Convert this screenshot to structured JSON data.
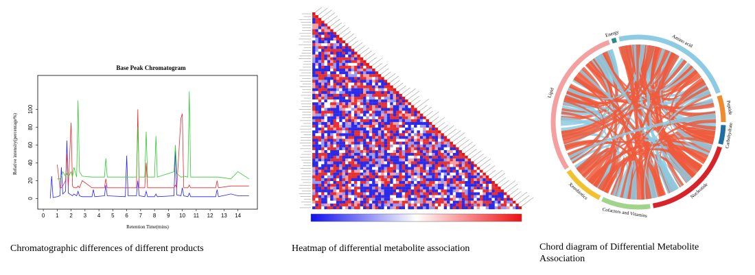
{
  "chart_data": {
    "type": "line",
    "title": "Base Peak Chromatogram",
    "xlabel": "Retention Time(mins)",
    "ylabel": "Relative intensity(percentage%)",
    "xlim": [
      -0.4,
      15.4
    ],
    "ylim": [
      -12,
      138
    ],
    "xticks": [
      0,
      1,
      2,
      3,
      4,
      5,
      6,
      7,
      8,
      9,
      10,
      11,
      12,
      13,
      14
    ],
    "yticks": [
      0,
      20,
      40,
      60,
      80,
      100
    ],
    "x": [
      0.5,
      0.6,
      0.7,
      1.0,
      1.2,
      1.3,
      1.4,
      1.6,
      1.7,
      1.8,
      2.0,
      2.1,
      2.2,
      2.4,
      2.5,
      2.6,
      2.8,
      3.5,
      3.6,
      3.7,
      4.4,
      4.5,
      4.6,
      5.9,
      6.0,
      6.1,
      6.7,
      6.8,
      6.9,
      7.3,
      7.4,
      7.5,
      8.0,
      8.1,
      8.2,
      9.4,
      9.5,
      9.6,
      9.9,
      10.0,
      10.1,
      10.4,
      10.5,
      10.6,
      12.4,
      12.5,
      12.6,
      13.5,
      14.0,
      14.8
    ],
    "series": [
      {
        "name": "blue",
        "color": "#1f1fff",
        "values": [
          0,
          25,
          1,
          2,
          3,
          35,
          5,
          8,
          65,
          6,
          4,
          3,
          5,
          3,
          8,
          3,
          2,
          2,
          10,
          2,
          3,
          15,
          3,
          2,
          48,
          3,
          3,
          20,
          3,
          2,
          8,
          2,
          2,
          5,
          2,
          3,
          57,
          4,
          3,
          12,
          3,
          2,
          6,
          2,
          2,
          10,
          2,
          5,
          3,
          3
        ]
      },
      {
        "name": "red",
        "color": "#e8262a",
        "values": [
          null,
          null,
          null,
          38,
          12,
          12,
          14,
          20,
          50,
          14,
          85,
          14,
          12,
          12,
          14,
          12,
          20,
          12,
          12,
          12,
          12,
          22,
          12,
          12,
          12,
          12,
          12,
          100,
          12,
          12,
          40,
          12,
          12,
          12,
          12,
          12,
          15,
          12,
          90,
          95,
          12,
          12,
          15,
          12,
          12,
          20,
          12,
          14,
          14,
          14
        ]
      },
      {
        "name": "green",
        "color": "#2ecc2e",
        "values": [
          null,
          null,
          null,
          22,
          22,
          24,
          30,
          25,
          28,
          24,
          30,
          24,
          35,
          24,
          110,
          30,
          25,
          24,
          24,
          24,
          24,
          45,
          24,
          24,
          24,
          24,
          24,
          80,
          24,
          24,
          75,
          24,
          24,
          70,
          24,
          30,
          60,
          28,
          24,
          24,
          25,
          24,
          120,
          24,
          24,
          24,
          24,
          22,
          30,
          22
        ]
      }
    ]
  },
  "captions": [
    "Chromatographic differences of different products",
    "Heatmap of differential metabolite association",
    "Chord diagram of Differential Metabolite Association"
  ],
  "chord": {
    "groups": [
      {
        "label": "Energy",
        "color": "#2a8a8a"
      },
      {
        "label": "Amino acid",
        "color": "#8ccbe3"
      },
      {
        "label": "Peptide",
        "color": "#f08a2c"
      },
      {
        "label": "Carbohydrate",
        "color": "#1f6fa0"
      },
      {
        "label": "Nucleotide",
        "color": "#d8232a"
      },
      {
        "label": "Cofactors and Vitamins",
        "color": "#9fd48a"
      },
      {
        "label": "Xenobiotics",
        "color": "#f2c12e"
      },
      {
        "label": "Lipid",
        "color": "#f4a0a0"
      }
    ]
  }
}
